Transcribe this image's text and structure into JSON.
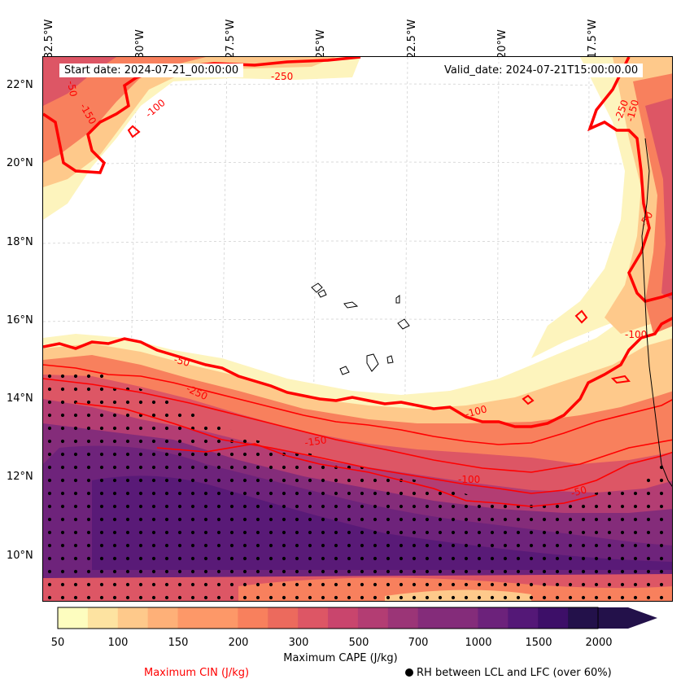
{
  "map": {
    "lon_labels": [
      "32.5°W",
      "30°W",
      "27.5°W",
      "25°W",
      "22.5°W",
      "20°W",
      "17.5°W"
    ],
    "lat_labels": [
      "22°N",
      "20°N",
      "18°N",
      "16°N",
      "14°N",
      "12°N",
      "10°N"
    ],
    "start_date": "Start date: 2024-07-21_00:00:00",
    "valid_date": "Valid_date: 2024-07-21T15:00:00.00",
    "contour_labels": [
      "-250",
      "-250",
      "-150",
      "-100",
      "-100",
      "-50",
      "-50",
      "-100",
      "-150",
      "-50",
      "-250",
      "-100",
      "-150",
      "-50"
    ]
  },
  "colorbar": {
    "levels": [
      "50",
      "100",
      "150",
      "200",
      "300",
      "500",
      "700",
      "1000",
      "1500",
      "2000"
    ],
    "colors": [
      "#fdfdbf",
      "#fde3a1",
      "#fec98b",
      "#feb078",
      "#fd9868",
      "#f8805d",
      "#ec6a5d",
      "#dd5665",
      "#c9456d",
      "#b33d73",
      "#9b3577",
      "#842c7a",
      "#6c227b",
      "#541877",
      "#3d0f68",
      "#23114a"
    ],
    "label": "Maximum CAPE (J/kg)"
  },
  "legend": {
    "cin": "Maximum CIN (J/kg)",
    "rh": "RH between LCL and LFC (over 60%)"
  }
}
